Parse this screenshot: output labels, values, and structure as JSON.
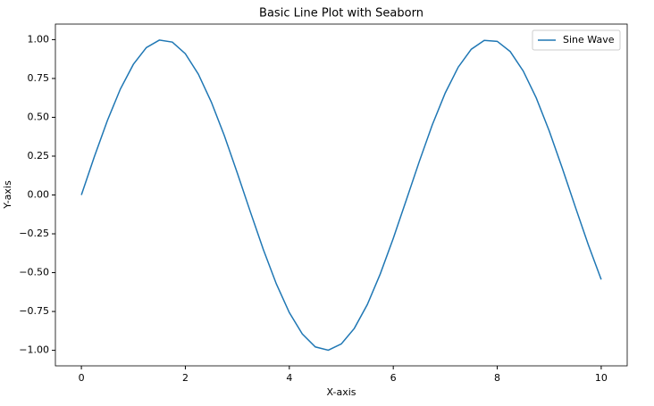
{
  "chart_data": {
    "type": "line",
    "title": "Basic Line Plot with Seaborn",
    "x_label": "X-axis",
    "y_label": "Y-axis",
    "x": [
      0,
      0.25,
      0.5,
      0.75,
      1,
      1.25,
      1.5,
      1.75,
      2,
      2.25,
      2.5,
      2.75,
      3,
      3.25,
      3.5,
      3.75,
      4,
      4.25,
      4.5,
      4.75,
      5,
      5.25,
      5.5,
      5.75,
      6,
      6.25,
      6.5,
      6.75,
      7,
      7.25,
      7.5,
      7.75,
      8,
      8.25,
      8.5,
      8.75,
      9,
      9.25,
      9.5,
      9.75,
      10
    ],
    "series": [
      {
        "name": "Sine Wave",
        "color": "#1f77b4",
        "values": [
          0,
          0.247,
          0.479,
          0.682,
          0.841,
          0.949,
          0.997,
          0.984,
          0.909,
          0.778,
          0.598,
          0.382,
          0.141,
          -0.108,
          -0.351,
          -0.572,
          -0.757,
          -0.895,
          -0.978,
          -0.999,
          -0.959,
          -0.859,
          -0.706,
          -0.508,
          -0.279,
          -0.033,
          0.215,
          0.451,
          0.657,
          0.823,
          0.938,
          0.995,
          0.989,
          0.923,
          0.798,
          0.625,
          0.412,
          0.174,
          -0.075,
          -0.319,
          -0.544
        ]
      }
    ],
    "xlim": [
      -0.5,
      10.5
    ],
    "ylim": [
      -1.1,
      1.1
    ],
    "xticks": [
      0,
      2,
      4,
      6,
      8,
      10
    ],
    "yticks": [
      {
        "value": -1,
        "label": "−1.00"
      },
      {
        "value": -0.75,
        "label": "−0.75"
      },
      {
        "value": -0.5,
        "label": "−0.50"
      },
      {
        "value": -0.25,
        "label": "−0.25"
      },
      {
        "value": 0,
        "label": "0.00"
      },
      {
        "value": 0.25,
        "label": "0.25"
      },
      {
        "value": 0.5,
        "label": "0.50"
      },
      {
        "value": 0.75,
        "label": "0.75"
      },
      {
        "value": 1,
        "label": "1.00"
      }
    ],
    "legend": "upper right"
  }
}
